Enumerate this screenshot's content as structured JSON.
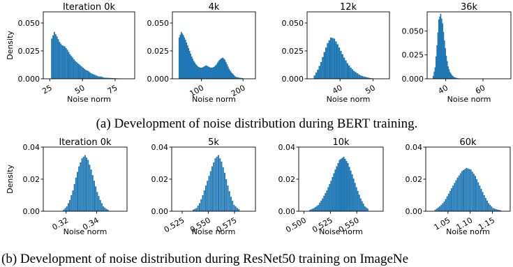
{
  "captions": {
    "a": "(a) Development of noise distribution during BERT training.",
    "b": "(b) Development of noise distribution during ResNet50 training on ImageNe"
  },
  "colors": {
    "bar": "#1f77b4",
    "axis": "#000000"
  },
  "chart_data": [
    {
      "type": "bar",
      "panel": "a1",
      "title": "Iteration 0k",
      "xlabel": "",
      "ylabel": "Density",
      "xlim": [
        20,
        90
      ],
      "ylim": [
        0,
        0.06
      ],
      "xticks": [
        25,
        50,
        75
      ],
      "xticklabels": [
        "25",
        "50",
        "75"
      ],
      "yticks": [
        0,
        0.025,
        0.05
      ],
      "yticklabels": [
        "0.000",
        "0.025",
        "0.050"
      ],
      "bin_width": 1,
      "x": [
        26,
        28,
        30,
        32,
        34,
        36,
        38,
        40,
        42,
        44,
        46,
        48,
        50,
        52,
        54,
        56,
        58,
        60,
        62,
        64,
        66,
        70,
        74,
        78,
        82
      ],
      "values": [
        0.036,
        0.042,
        0.038,
        0.033,
        0.03,
        0.029,
        0.026,
        0.022,
        0.019,
        0.016,
        0.014,
        0.012,
        0.01,
        0.008,
        0.007,
        0.005,
        0.004,
        0.003,
        0.002,
        0.002,
        0.001,
        0.0008,
        0.0005,
        0.0003,
        0.0002
      ]
    },
    {
      "type": "bar",
      "panel": "a2",
      "title": "4k",
      "xlabel": "",
      "ylabel": "",
      "xlim": [
        30,
        230
      ],
      "ylim": [
        0,
        0.06
      ],
      "xticks": [
        100,
        200
      ],
      "xticklabels": [
        "100",
        "200"
      ],
      "yticks": [
        0,
        0.025,
        0.05
      ],
      "yticklabels": [
        "0.000",
        "0.025",
        "0.050"
      ],
      "bin_width": 3,
      "x": [
        45,
        50,
        55,
        60,
        65,
        70,
        75,
        80,
        85,
        90,
        95,
        100,
        105,
        110,
        115,
        120,
        125,
        130,
        135,
        140,
        145,
        150,
        155,
        160,
        165,
        170,
        175,
        180,
        190,
        200
      ],
      "values": [
        0.037,
        0.042,
        0.039,
        0.035,
        0.03,
        0.025,
        0.02,
        0.016,
        0.013,
        0.011,
        0.01,
        0.01,
        0.011,
        0.012,
        0.011,
        0.01,
        0.01,
        0.011,
        0.013,
        0.016,
        0.018,
        0.019,
        0.017,
        0.013,
        0.009,
        0.006,
        0.004,
        0.002,
        0.001,
        0.0005
      ]
    },
    {
      "type": "bar",
      "panel": "a3",
      "title": "12k",
      "xlabel": "",
      "ylabel": "",
      "xlim": [
        30,
        55
      ],
      "ylim": [
        0,
        0.06
      ],
      "xticks": [
        40,
        50
      ],
      "xticklabels": [
        "40",
        "50"
      ],
      "yticks": [
        0,
        0.025,
        0.05
      ],
      "yticklabels": [
        "0.000",
        "0.025",
        "0.050"
      ],
      "bin_width": 0.5,
      "x": [
        32,
        33,
        34,
        35,
        36,
        37,
        38,
        39,
        40,
        41,
        42,
        43,
        44,
        45,
        46,
        47,
        48,
        49,
        50
      ],
      "values": [
        0.003,
        0.008,
        0.015,
        0.024,
        0.032,
        0.037,
        0.036,
        0.031,
        0.025,
        0.019,
        0.014,
        0.01,
        0.007,
        0.005,
        0.003,
        0.002,
        0.0012,
        0.0006,
        0.0003
      ]
    },
    {
      "type": "bar",
      "panel": "a4",
      "title": "36k",
      "xlabel": "",
      "ylabel": "",
      "xlim": [
        30,
        75
      ],
      "ylim": [
        0,
        0.07
      ],
      "xticks": [
        40,
        60
      ],
      "xticklabels": [
        "40",
        "60"
      ],
      "yticks": [
        0,
        0.025,
        0.05
      ],
      "yticklabels": [
        "0.000",
        "0.025",
        "0.050"
      ],
      "bin_width": 0.6,
      "x": [
        33,
        34,
        35,
        36,
        37,
        38,
        39,
        40,
        41,
        42,
        43,
        44,
        45,
        46,
        48
      ],
      "values": [
        0.003,
        0.012,
        0.035,
        0.062,
        0.068,
        0.058,
        0.04,
        0.024,
        0.013,
        0.007,
        0.004,
        0.002,
        0.0012,
        0.0006,
        0.0002
      ]
    },
    {
      "type": "bar",
      "panel": "b1",
      "title": "Iteration 0k",
      "xlabel": "",
      "ylabel": "Density",
      "xlim": [
        0.305,
        0.36
      ],
      "ylim": [
        0,
        0.04
      ],
      "xticks": [
        0.32,
        0.34
      ],
      "xticklabels": [
        "0.32",
        "0.34"
      ],
      "yticks": [
        0,
        0.02,
        0.04
      ],
      "yticklabels": [
        "0.00",
        "0.02",
        "0.04"
      ],
      "bin_width": 0.0009,
      "x": [
        0.318,
        0.32,
        0.322,
        0.324,
        0.326,
        0.328,
        0.33,
        0.332,
        0.334,
        0.336,
        0.338,
        0.34,
        0.342,
        0.344,
        0.346,
        0.348
      ],
      "values": [
        0.001,
        0.003,
        0.007,
        0.013,
        0.021,
        0.028,
        0.033,
        0.035,
        0.032,
        0.026,
        0.019,
        0.012,
        0.007,
        0.003,
        0.0015,
        0.0005
      ]
    },
    {
      "type": "bar",
      "panel": "b2",
      "title": "5k",
      "xlabel": "",
      "ylabel": "",
      "xlim": [
        0.515,
        0.595
      ],
      "ylim": [
        0,
        0.04
      ],
      "xticks": [
        0.525,
        0.55,
        0.575
      ],
      "xticklabels": [
        "0.525",
        "0.550",
        "0.575"
      ],
      "yticks": [
        0,
        0.02,
        0.04
      ],
      "yticklabels": [
        "0.00",
        "0.02",
        "0.04"
      ],
      "bin_width": 0.0013,
      "x": [
        0.535,
        0.538,
        0.541,
        0.544,
        0.547,
        0.55,
        0.553,
        0.556,
        0.559,
        0.562,
        0.565,
        0.568,
        0.571,
        0.574,
        0.577,
        0.58
      ],
      "values": [
        0.001,
        0.002,
        0.005,
        0.01,
        0.016,
        0.022,
        0.028,
        0.033,
        0.035,
        0.031,
        0.024,
        0.016,
        0.009,
        0.004,
        0.002,
        0.0006
      ]
    },
    {
      "type": "bar",
      "panel": "b3",
      "title": "10k",
      "xlabel": "",
      "ylabel": "",
      "xlim": [
        0.495,
        0.575
      ],
      "ylim": [
        0,
        0.04
      ],
      "xticks": [
        0.5,
        0.525,
        0.55
      ],
      "xticklabels": [
        "0.500",
        "0.525",
        "0.550"
      ],
      "yticks": [
        0,
        0.02,
        0.04
      ],
      "yticklabels": [
        "0.00",
        "0.02",
        "0.04"
      ],
      "bin_width": 0.0013,
      "x": [
        0.505,
        0.509,
        0.513,
        0.517,
        0.521,
        0.525,
        0.529,
        0.533,
        0.537,
        0.541,
        0.545,
        0.549,
        0.553,
        0.557,
        0.561
      ],
      "values": [
        0.0008,
        0.002,
        0.004,
        0.008,
        0.013,
        0.019,
        0.026,
        0.032,
        0.034,
        0.03,
        0.023,
        0.015,
        0.008,
        0.003,
        0.001
      ]
    },
    {
      "type": "bar",
      "panel": "b4",
      "title": "60k",
      "xlabel": "",
      "ylabel": "",
      "xlim": [
        1.0,
        1.19
      ],
      "ylim": [
        0,
        0.04
      ],
      "xticks": [
        1.05,
        1.1,
        1.15
      ],
      "xticklabels": [
        "1.05",
        "1.10",
        "1.15"
      ],
      "yticks": [
        0,
        0.02,
        0.04
      ],
      "yticklabels": [
        "0.00",
        "0.02",
        "0.04"
      ],
      "bin_width": 0.003,
      "x": [
        1.02,
        1.03,
        1.04,
        1.05,
        1.06,
        1.07,
        1.08,
        1.09,
        1.1,
        1.11,
        1.12,
        1.13,
        1.14,
        1.15,
        1.16,
        1.17
      ],
      "values": [
        0.001,
        0.003,
        0.006,
        0.011,
        0.016,
        0.021,
        0.025,
        0.027,
        0.026,
        0.022,
        0.016,
        0.01,
        0.005,
        0.002,
        0.001,
        0.0004
      ]
    }
  ],
  "x_axis_label": "Noise norm"
}
